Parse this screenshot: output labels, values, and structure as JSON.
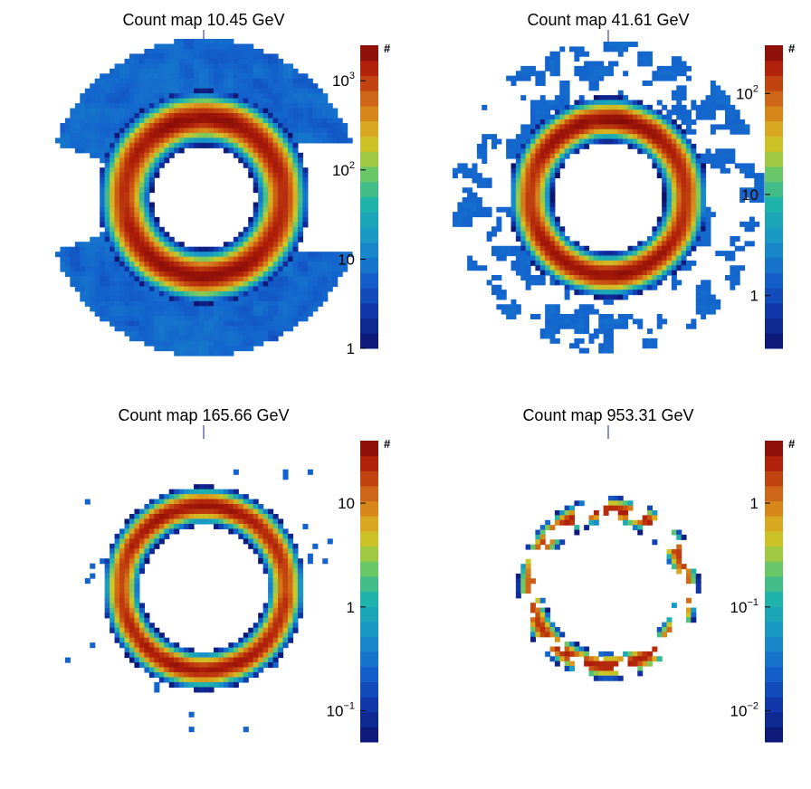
{
  "chart_data": [
    {
      "type": "heatmap",
      "title": "Count map 10.45 GeV",
      "colorbar_unit": "#",
      "log_scale": true,
      "zlim": [
        1,
        2500
      ],
      "colorbar_ticks": [
        {
          "value": 1,
          "base": "1",
          "exp": ""
        },
        {
          "value": 10,
          "base": "10",
          "exp": ""
        },
        {
          "value": 100,
          "base": "10",
          "exp": "2"
        },
        {
          "value": 1000,
          "base": "10",
          "exp": "3"
        }
      ],
      "disk_radius": 1.0,
      "ring": {
        "radius": 0.5,
        "width": 0.09,
        "peak": 2000
      },
      "inner_hole_radius": 0.33,
      "background_level": 6,
      "background_coverage": 0.95,
      "hole_angle_ranges": [
        [
          160,
          200
        ],
        [
          -20,
          20
        ]
      ]
    },
    {
      "type": "heatmap",
      "title": "Count map 41.61 GeV",
      "colorbar_unit": "#",
      "log_scale": true,
      "zlim": [
        0.3,
        300
      ],
      "colorbar_ticks": [
        {
          "value": 1,
          "base": "1",
          "exp": ""
        },
        {
          "value": 10,
          "base": "10",
          "exp": ""
        },
        {
          "value": 100,
          "base": "10",
          "exp": "2"
        }
      ],
      "disk_radius": 1.0,
      "ring": {
        "radius": 0.5,
        "width": 0.08,
        "peak": 250
      },
      "inner_hole_radius": 0.4,
      "background_level": 1.2,
      "background_coverage": 0.45,
      "hole_angle_ranges": []
    },
    {
      "type": "heatmap",
      "title": "Count map 165.66 GeV",
      "colorbar_unit": "#",
      "log_scale": true,
      "zlim": [
        0.05,
        40
      ],
      "colorbar_ticks": [
        {
          "value": 0.1,
          "base": "10",
          "exp": "−1"
        },
        {
          "value": 1,
          "base": "1",
          "exp": ""
        },
        {
          "value": 10,
          "base": "10",
          "exp": ""
        }
      ],
      "disk_radius": 1.0,
      "ring": {
        "radius": 0.52,
        "width": 0.07,
        "peak": 30
      },
      "inner_hole_radius": 0.45,
      "background_level": 0.15,
      "background_coverage": 0.18,
      "hole_angle_ranges": []
    },
    {
      "type": "heatmap",
      "title": "Count map 953.31 GeV",
      "colorbar_unit": "#",
      "log_scale": true,
      "zlim": [
        0.005,
        4
      ],
      "colorbar_ticks": [
        {
          "value": 0.01,
          "base": "10",
          "exp": "−2"
        },
        {
          "value": 0.1,
          "base": "10",
          "exp": "−1"
        },
        {
          "value": 1,
          "base": "1",
          "exp": ""
        }
      ],
      "disk_radius": 1.0,
      "ring": {
        "radius": 0.5,
        "width": 0.05,
        "peak": 2.5
      },
      "inner_hole_radius": 0.45,
      "background_level": 0.03,
      "background_coverage": 0.03,
      "hole_angle_ranges": []
    }
  ]
}
